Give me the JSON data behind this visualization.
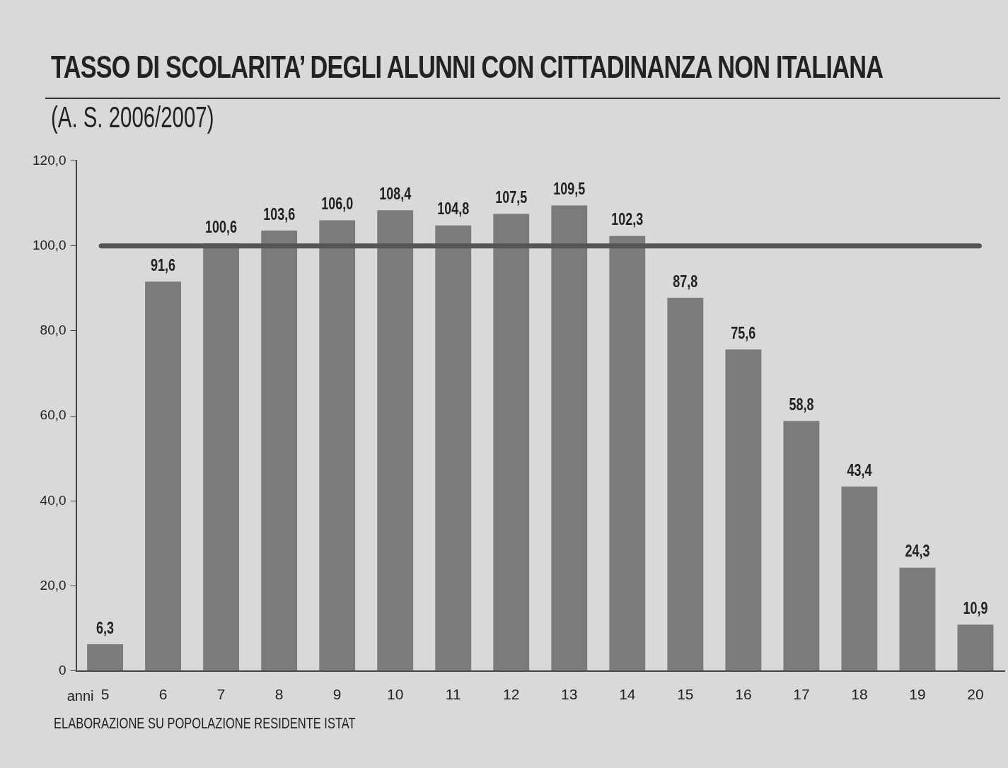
{
  "chart_data": {
    "type": "bar",
    "title": "TASSO DI SCOLARITA’ DEGLI ALUNNI CON CITTADINANZA NON ITALIANA",
    "subtitle": "(A. S. 2006/2007)",
    "xlabel": "anni",
    "categories": [
      "5",
      "6",
      "7",
      "8",
      "9",
      "10",
      "11",
      "12",
      "13",
      "14",
      "15",
      "16",
      "17",
      "18",
      "19",
      "20"
    ],
    "values": [
      6.3,
      91.6,
      100.6,
      103.6,
      106.0,
      108.4,
      104.8,
      107.5,
      109.5,
      102.3,
      87.8,
      75.6,
      58.8,
      43.4,
      24.3,
      10.9
    ],
    "value_labels": [
      "6,3",
      "91,6",
      "100,6",
      "103,6",
      "106,0",
      "108,4",
      "104,8",
      "107,5",
      "109,5",
      "102,3",
      "87,8",
      "75,6",
      "58,8",
      "43,4",
      "24,3",
      "10,9"
    ],
    "color": "#7b7b7b",
    "ylim": [
      0,
      120
    ],
    "yticks": [
      {
        "value": 0,
        "label": "0"
      },
      {
        "value": 20,
        "label": "20,0"
      },
      {
        "value": 40,
        "label": "40,0"
      },
      {
        "value": 60,
        "label": "60,0"
      },
      {
        "value": 80,
        "label": "80,0"
      },
      {
        "value": 100,
        "label": "100,0"
      },
      {
        "value": 120,
        "label": "120,0"
      }
    ],
    "ref_lines": [
      {
        "axis": "y",
        "value": 100,
        "color": "#555555"
      }
    ],
    "grid": false,
    "legend": false,
    "annotations": [
      "ELABORAZIONE SU POPOLAZIONE RESIDENTE ISTAT"
    ]
  }
}
